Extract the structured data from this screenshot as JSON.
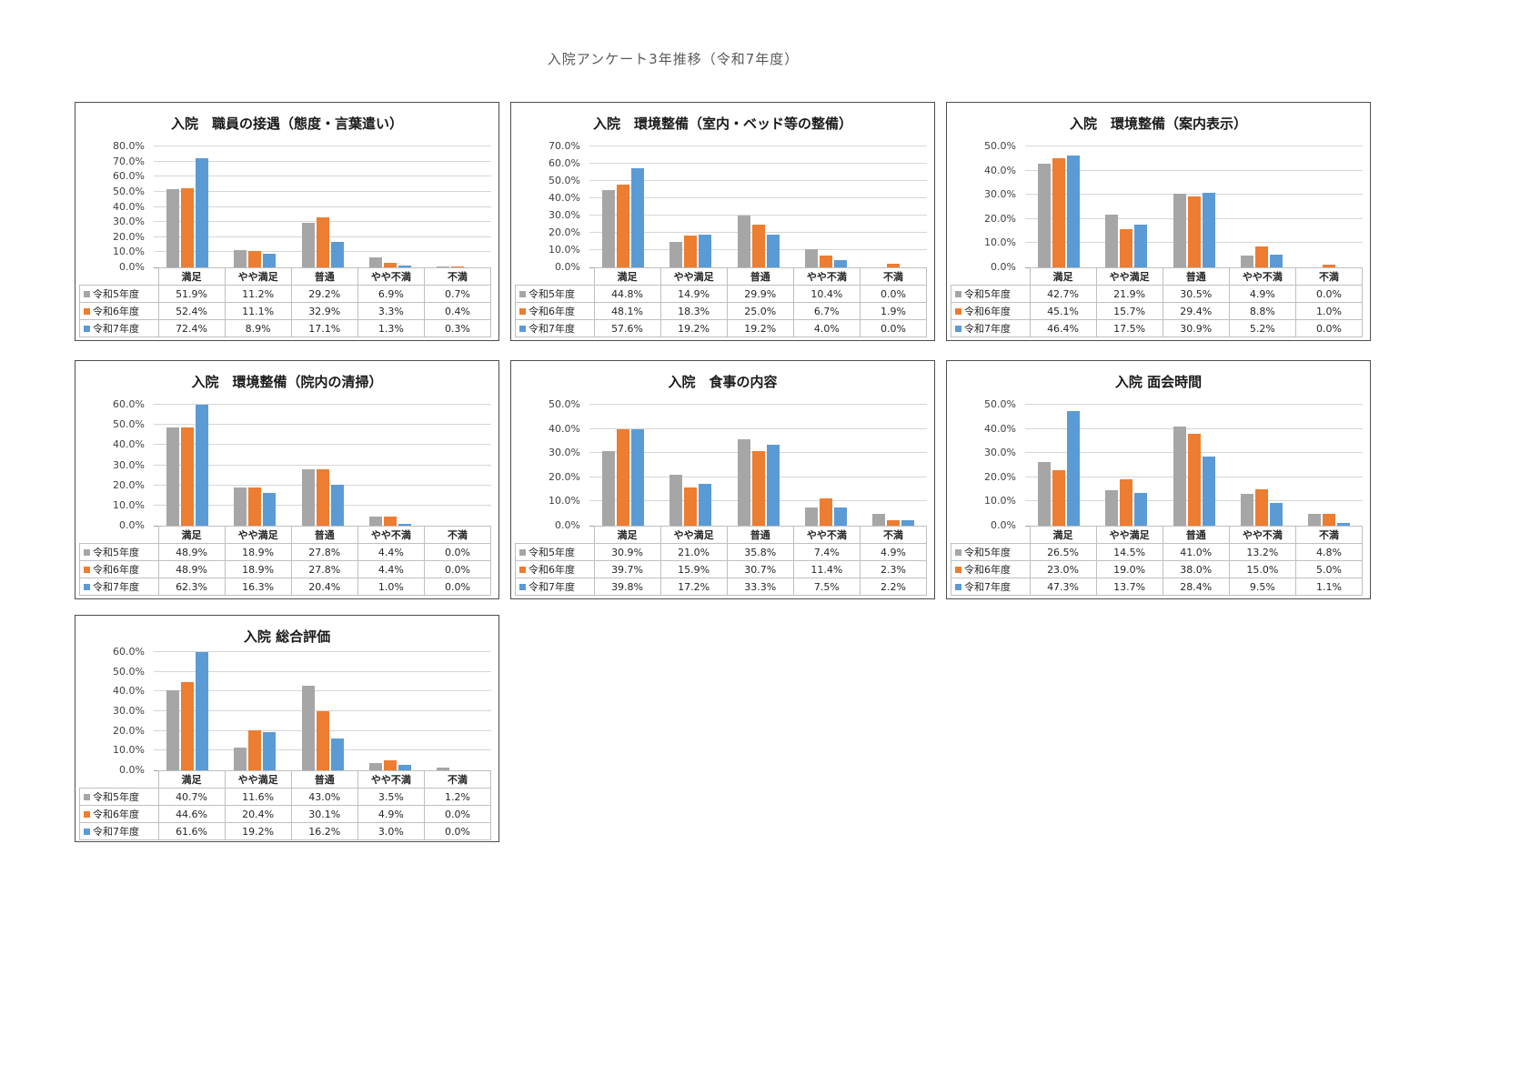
{
  "page_title": "入院アンケート3年推移（令和7年度）",
  "series_colors": [
    "#A6A6A6",
    "#ED7D31",
    "#5B9BD5"
  ],
  "chart_data": [
    {
      "type": "bar",
      "title": "入院　職員の接遇（態度・言葉遣い）",
      "categories": [
        "満足",
        "やや満足",
        "普通",
        "やや不満",
        "不満"
      ],
      "series": [
        {
          "name": "令和5年度",
          "values": [
            51.9,
            11.2,
            29.2,
            6.9,
            0.7
          ]
        },
        {
          "name": "令和6年度",
          "values": [
            52.4,
            11.1,
            32.9,
            3.3,
            0.4
          ]
        },
        {
          "name": "令和7年度",
          "values": [
            72.4,
            8.9,
            17.1,
            1.3,
            0.3
          ]
        }
      ],
      "ylim": [
        0,
        80
      ],
      "ytick_step": 10,
      "grid": true,
      "legend_position": "table-left"
    },
    {
      "type": "bar",
      "title": "入院　環境整備（室内・ベッド等の整備）",
      "categories": [
        "満足",
        "やや満足",
        "普通",
        "やや不満",
        "不満"
      ],
      "series": [
        {
          "name": "令和5年度",
          "values": [
            44.8,
            14.9,
            29.9,
            10.4,
            0.0
          ]
        },
        {
          "name": "令和6年度",
          "values": [
            48.1,
            18.3,
            25.0,
            6.7,
            1.9
          ]
        },
        {
          "name": "令和7年度",
          "values": [
            57.6,
            19.2,
            19.2,
            4.0,
            0.0
          ]
        }
      ],
      "ylim": [
        0,
        70
      ],
      "ytick_step": 10,
      "grid": true,
      "legend_position": "table-left"
    },
    {
      "type": "bar",
      "title": "入院　環境整備（案内表示）",
      "categories": [
        "満足",
        "やや満足",
        "普通",
        "やや不満",
        "不満"
      ],
      "series": [
        {
          "name": "令和5年度",
          "values": [
            42.7,
            21.9,
            30.5,
            4.9,
            0.0
          ]
        },
        {
          "name": "令和6年度",
          "values": [
            45.1,
            15.7,
            29.4,
            8.8,
            1.0
          ]
        },
        {
          "name": "令和7年度",
          "values": [
            46.4,
            17.5,
            30.9,
            5.2,
            0.0
          ]
        }
      ],
      "ylim": [
        0,
        50
      ],
      "ytick_step": 10,
      "grid": true,
      "legend_position": "table-left"
    },
    {
      "type": "bar",
      "title": "入院　環境整備（院内の清掃）",
      "categories": [
        "満足",
        "やや満足",
        "普通",
        "やや不満",
        "不満"
      ],
      "series": [
        {
          "name": "令和5年度",
          "values": [
            48.9,
            18.9,
            27.8,
            4.4,
            0.0
          ]
        },
        {
          "name": "令和6年度",
          "values": [
            48.9,
            18.9,
            27.8,
            4.4,
            0.0
          ]
        },
        {
          "name": "令和7年度",
          "values": [
            62.3,
            16.3,
            20.4,
            1.0,
            0.0
          ]
        }
      ],
      "ylim": [
        0,
        60
      ],
      "ytick_step": 10,
      "grid": true,
      "legend_position": "table-left"
    },
    {
      "type": "bar",
      "title": "入院　食事の内容",
      "categories": [
        "満足",
        "やや満足",
        "普通",
        "やや不満",
        "不満"
      ],
      "series": [
        {
          "name": "令和5年度",
          "values": [
            30.9,
            21.0,
            35.8,
            7.4,
            4.9
          ]
        },
        {
          "name": "令和6年度",
          "values": [
            39.7,
            15.9,
            30.7,
            11.4,
            2.3
          ]
        },
        {
          "name": "令和7年度",
          "values": [
            39.8,
            17.2,
            33.3,
            7.5,
            2.2
          ]
        }
      ],
      "ylim": [
        0,
        50
      ],
      "ytick_step": 10,
      "grid": true,
      "legend_position": "table-left"
    },
    {
      "type": "bar",
      "title": "入院 面会時間",
      "categories": [
        "満足",
        "やや満足",
        "普通",
        "やや不満",
        "不満"
      ],
      "series": [
        {
          "name": "令和5年度",
          "values": [
            26.5,
            14.5,
            41.0,
            13.2,
            4.8
          ]
        },
        {
          "name": "令和6年度",
          "values": [
            23.0,
            19.0,
            38.0,
            15.0,
            5.0
          ]
        },
        {
          "name": "令和7年度",
          "values": [
            47.3,
            13.7,
            28.4,
            9.5,
            1.1
          ]
        }
      ],
      "ylim": [
        0,
        50
      ],
      "ytick_step": 10,
      "grid": true,
      "legend_position": "table-left"
    },
    {
      "type": "bar",
      "title": "入院 総合評価",
      "categories": [
        "満足",
        "やや満足",
        "普通",
        "やや不満",
        "不満"
      ],
      "series": [
        {
          "name": "令和5年度",
          "values": [
            40.7,
            11.6,
            43.0,
            3.5,
            1.2
          ]
        },
        {
          "name": "令和6年度",
          "values": [
            44.6,
            20.4,
            30.1,
            4.9,
            0.0
          ]
        },
        {
          "name": "令和7年度",
          "values": [
            61.6,
            19.2,
            16.2,
            3.0,
            0.0
          ]
        }
      ],
      "ylim": [
        0,
        60
      ],
      "ytick_step": 10,
      "grid": true,
      "legend_position": "table-left"
    }
  ]
}
